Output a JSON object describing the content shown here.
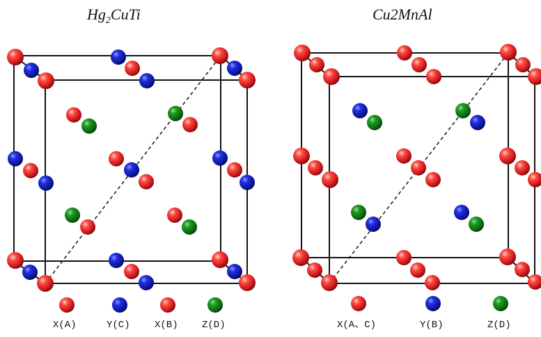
{
  "colors": {
    "red": "#e8262a",
    "blue": "#1320c8",
    "green": "#0f7a14",
    "edge": "#111111"
  },
  "panels": [
    {
      "title_main": "Hg",
      "title_sub": "2",
      "title_rest": "CuTi",
      "legend": [
        {
          "label": "X(A)",
          "color": "red"
        },
        {
          "label": "Y(C)",
          "color": "blue"
        },
        {
          "label": "X(B)",
          "color": "red"
        },
        {
          "label": "Z(D)",
          "color": "green"
        }
      ]
    },
    {
      "title_main": "Cu2MnAl",
      "title_sub": "",
      "title_rest": "",
      "legend": [
        {
          "label": "X(A、C)",
          "color": "red"
        },
        {
          "label": "Y(B)",
          "color": "blue"
        },
        {
          "label": "Z(D)",
          "color": "green"
        }
      ]
    }
  ]
}
